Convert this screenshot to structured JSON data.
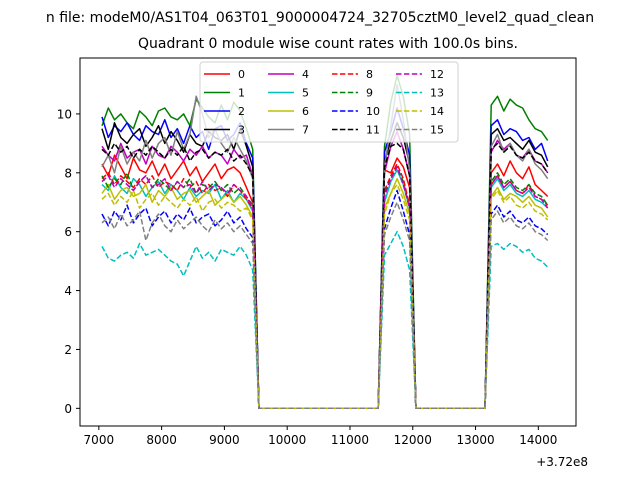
{
  "chart_data": {
    "type": "line",
    "suptitle": "n file: modeM0/AS1T04_063T01_9000004724_32705cztM0_level2_quad_clean",
    "title": "Quadrant 0 module wise count rates with 100.0s bins.",
    "xlabel": "",
    "ylabel": "",
    "x_offset_label": "+3.72e8",
    "xlim": [
      6700,
      14600
    ],
    "ylim": [
      -0.6,
      11.9
    ],
    "xticks": [
      7000,
      8000,
      9000,
      10000,
      11000,
      12000,
      13000,
      14000
    ],
    "yticks": [
      0,
      2,
      4,
      6,
      8,
      10
    ],
    "grid": false,
    "legend": {
      "position": "top-center",
      "ncol": 4
    },
    "x_segments": [
      {
        "start": 7050,
        "end": 9450,
        "step": 100
      },
      {
        "start": 11550,
        "end": 11950,
        "step": 100
      },
      {
        "start": 13250,
        "end": 14150,
        "step": 100
      }
    ],
    "series": [
      {
        "name": "0",
        "color": "#ff0000",
        "dash": "solid",
        "seg": [
          [
            8.3,
            7.9,
            8.6,
            8.2,
            7.8,
            8.5,
            8.1,
            8.0,
            8.4,
            7.9,
            8.3,
            7.8,
            8.1,
            8.4,
            7.9,
            8.2,
            7.7,
            8.0,
            8.3,
            7.8,
            8.1,
            8.2,
            8.0,
            7.5,
            7.0
          ],
          [
            8.1,
            8.0,
            8.5,
            8.2,
            7.5
          ],
          [
            8.0,
            8.3,
            7.9,
            8.4,
            8.0,
            7.8,
            8.2,
            7.6,
            7.4,
            7.2
          ]
        ]
      },
      {
        "name": "1",
        "color": "#008000",
        "dash": "solid",
        "seg": [
          [
            9.6,
            10.2,
            9.8,
            10.0,
            9.7,
            9.5,
            10.1,
            9.9,
            9.6,
            10.1,
            10.2,
            9.9,
            9.8,
            10.0,
            9.6,
            10.5,
            10.2,
            9.9,
            9.7,
            10.3,
            9.8,
            10.4,
            10.1,
            9.5,
            8.8
          ],
          [
            8.9,
            10.4,
            11.3,
            10.6,
            9.3
          ],
          [
            10.3,
            10.6,
            10.1,
            10.5,
            10.3,
            10.2,
            9.8,
            9.5,
            9.4,
            9.1
          ]
        ]
      },
      {
        "name": "2",
        "color": "#0000ff",
        "dash": "solid",
        "seg": [
          [
            9.9,
            9.2,
            9.6,
            9.4,
            9.7,
            9.3,
            9.1,
            9.6,
            9.4,
            9.3,
            9.8,
            9.2,
            9.5,
            9.0,
            9.6,
            9.2,
            9.4,
            8.8,
            9.5,
            9.6,
            9.1,
            9.3,
            9.7,
            9.0,
            8.5
          ],
          [
            8.7,
            9.4,
            10.2,
            9.5,
            8.6
          ],
          [
            9.6,
            9.8,
            9.3,
            9.5,
            9.4,
            9.1,
            9.2,
            8.8,
            9.0,
            8.4
          ]
        ]
      },
      {
        "name": "3",
        "color": "#000000",
        "dash": "solid",
        "seg": [
          [
            9.5,
            8.8,
            9.7,
            9.2,
            9.0,
            9.3,
            9.5,
            8.9,
            9.2,
            9.6,
            9.0,
            9.4,
            9.1,
            8.7,
            9.3,
            9.0,
            8.9,
            9.4,
            9.2,
            9.1,
            9.3,
            8.8,
            9.5,
            8.9,
            8.2
          ],
          [
            8.4,
            9.1,
            9.7,
            9.2,
            8.3
          ],
          [
            9.3,
            9.5,
            9.1,
            9.2,
            9.0,
            8.8,
            9.1,
            8.7,
            8.6,
            8.2
          ]
        ]
      },
      {
        "name": "4",
        "color": "#bf00bf",
        "dash": "solid",
        "seg": [
          [
            8.9,
            8.6,
            8.4,
            9.0,
            8.5,
            8.7,
            8.8,
            8.3,
            8.9,
            8.6,
            8.5,
            8.9,
            8.7,
            8.4,
            8.8,
            8.6,
            8.9,
            8.5,
            8.7,
            8.6,
            8.3,
            8.8,
            8.5,
            8.6,
            7.9
          ],
          [
            8.0,
            8.9,
            9.4,
            8.8,
            7.9
          ],
          [
            8.7,
            9.1,
            8.8,
            9.0,
            8.6,
            8.5,
            8.8,
            8.4,
            8.3,
            8.0
          ]
        ]
      },
      {
        "name": "5",
        "color": "#00bfbf",
        "dash": "solid",
        "seg": [
          [
            7.6,
            7.4,
            7.9,
            7.5,
            7.3,
            7.8,
            7.6,
            7.2,
            7.5,
            7.7,
            7.3,
            7.6,
            7.4,
            7.1,
            7.5,
            7.2,
            7.4,
            7.3,
            7.6,
            7.1,
            7.4,
            7.0,
            7.3,
            7.1,
            6.7
          ],
          [
            7.0,
            7.7,
            8.1,
            7.6,
            6.8
          ],
          [
            7.5,
            7.8,
            7.4,
            7.6,
            7.3,
            7.2,
            7.4,
            7.1,
            7.0,
            6.8
          ]
        ]
      },
      {
        "name": "6",
        "color": "#bfbf00",
        "dash": "solid",
        "seg": [
          [
            7.3,
            7.6,
            7.1,
            7.4,
            7.5,
            7.2,
            7.3,
            7.6,
            7.0,
            7.4,
            7.2,
            7.5,
            7.1,
            7.3,
            7.4,
            7.0,
            7.2,
            7.4,
            6.9,
            7.1,
            7.3,
            7.0,
            7.2,
            6.9,
            6.5
          ],
          [
            6.8,
            7.3,
            7.8,
            7.3,
            6.6
          ],
          [
            7.2,
            7.5,
            7.1,
            7.3,
            7.2,
            7.0,
            7.2,
            6.9,
            6.8,
            6.5
          ]
        ]
      },
      {
        "name": "7",
        "color": "#808080",
        "dash": "solid",
        "seg": [
          [
            8.2,
            8.6,
            8.0,
            8.9,
            8.3,
            8.7,
            8.4,
            9.1,
            8.5,
            9.0,
            9.2,
            8.6,
            9.4,
            8.8,
            9.3,
            10.6,
            10.0,
            9.2,
            9.5,
            9.0,
            8.7,
            9.2,
            8.8,
            8.4,
            7.8
          ],
          [
            8.2,
            9.6,
            11.0,
            9.8,
            8.1
          ],
          [
            8.9,
            9.3,
            8.7,
            9.0,
            8.6,
            8.4,
            8.8,
            8.3,
            8.1,
            7.8
          ]
        ]
      },
      {
        "name": "8",
        "color": "#ff0000",
        "dash": "dashed",
        "seg": [
          [
            7.8,
            8.0,
            7.6,
            7.9,
            7.7,
            7.5,
            7.8,
            7.6,
            7.9,
            7.5,
            7.7,
            7.6,
            7.4,
            7.8,
            7.5,
            7.7,
            7.3,
            7.6,
            7.4,
            7.5,
            7.2,
            7.6,
            7.4,
            7.1,
            6.8
          ],
          [
            7.4,
            7.9,
            8.3,
            7.8,
            6.9
          ],
          [
            7.6,
            7.9,
            7.5,
            7.7,
            7.4,
            7.3,
            7.6,
            7.2,
            7.1,
            6.9
          ]
        ]
      },
      {
        "name": "9",
        "color": "#008000",
        "dash": "dashed",
        "seg": [
          [
            7.9,
            7.5,
            7.8,
            7.6,
            8.0,
            7.4,
            7.7,
            7.9,
            7.5,
            7.8,
            7.6,
            7.4,
            7.7,
            7.5,
            7.8,
            7.3,
            7.6,
            7.5,
            7.7,
            7.4,
            7.6,
            7.3,
            7.5,
            7.2,
            6.9
          ],
          [
            7.3,
            7.8,
            8.2,
            7.7,
            6.8
          ],
          [
            7.7,
            8.0,
            7.6,
            7.8,
            7.5,
            7.4,
            7.6,
            7.3,
            7.2,
            6.9
          ]
        ]
      },
      {
        "name": "10",
        "color": "#0000ff",
        "dash": "dashed",
        "seg": [
          [
            6.6,
            6.2,
            6.7,
            6.4,
            6.9,
            6.3,
            6.6,
            6.8,
            6.2,
            6.5,
            6.7,
            6.3,
            6.6,
            6.4,
            6.8,
            6.3,
            6.5,
            6.6,
            6.2,
            6.4,
            6.7,
            6.3,
            6.5,
            6.1,
            5.8
          ],
          [
            6.1,
            6.8,
            7.4,
            6.7,
            5.9
          ],
          [
            6.6,
            6.9,
            6.5,
            6.7,
            6.4,
            6.3,
            6.5,
            6.2,
            6.1,
            5.9
          ]
        ]
      },
      {
        "name": "11",
        "color": "#000000",
        "dash": "dashed",
        "seg": [
          [
            8.8,
            8.6,
            9.0,
            8.7,
            8.9,
            8.5,
            8.8,
            8.6,
            8.9,
            8.7,
            8.5,
            8.8,
            8.6,
            8.9,
            8.4,
            8.7,
            8.8,
            8.5,
            8.7,
            8.6,
            8.8,
            8.4,
            8.6,
            8.3,
            7.9
          ],
          [
            8.2,
            8.9,
            9.0,
            8.8,
            7.9
          ],
          [
            8.8,
            9.0,
            8.7,
            8.9,
            8.6,
            8.5,
            8.7,
            8.4,
            8.3,
            8.0
          ]
        ]
      },
      {
        "name": "12",
        "color": "#bf00bf",
        "dash": "dashed",
        "seg": [
          [
            7.7,
            7.9,
            7.5,
            7.8,
            7.6,
            7.4,
            7.7,
            7.9,
            7.5,
            7.6,
            7.8,
            7.4,
            7.7,
            7.5,
            7.6,
            7.3,
            7.7,
            7.4,
            7.6,
            7.5,
            7.3,
            7.6,
            7.4,
            7.2,
            6.8
          ],
          [
            7.2,
            7.8,
            8.2,
            7.6,
            6.8
          ],
          [
            7.6,
            7.9,
            7.5,
            7.7,
            7.4,
            7.3,
            7.5,
            7.2,
            7.1,
            6.8
          ]
        ]
      },
      {
        "name": "13",
        "color": "#00bfbf",
        "dash": "dashed",
        "seg": [
          [
            5.5,
            5.1,
            5.0,
            5.2,
            5.3,
            5.1,
            5.6,
            5.2,
            5.3,
            5.4,
            5.2,
            5.0,
            4.9,
            4.5,
            5.0,
            5.5,
            5.1,
            5.3,
            5.0,
            5.4,
            5.3,
            5.2,
            5.5,
            5.2,
            4.7
          ],
          [
            5.2,
            5.6,
            6.0,
            5.5,
            4.7
          ],
          [
            5.5,
            5.6,
            5.4,
            5.6,
            5.5,
            5.3,
            5.4,
            5.1,
            5.0,
            4.8
          ]
        ]
      },
      {
        "name": "14",
        "color": "#bfbf00",
        "dash": "dashed",
        "seg": [
          [
            7.1,
            7.3,
            6.9,
            7.2,
            7.0,
            7.4,
            6.8,
            7.1,
            7.3,
            6.9,
            7.2,
            7.0,
            6.8,
            7.1,
            6.9,
            7.2,
            6.7,
            7.0,
            7.1,
            6.8,
            7.0,
            6.9,
            6.7,
            6.8,
            6.4
          ],
          [
            6.6,
            7.3,
            7.6,
            7.1,
            6.4
          ],
          [
            7.1,
            7.4,
            7.0,
            7.2,
            6.9,
            6.8,
            7.0,
            6.7,
            6.6,
            6.4
          ]
        ]
      },
      {
        "name": "15",
        "color": "#808080",
        "dash": "dashed",
        "seg": [
          [
            6.3,
            6.5,
            6.1,
            6.6,
            6.2,
            6.4,
            6.7,
            5.7,
            6.3,
            6.6,
            6.2,
            6.0,
            6.4,
            6.1,
            6.3,
            6.5,
            6.2,
            6.0,
            6.4,
            6.1,
            6.3,
            6.0,
            6.2,
            5.9,
            5.6
          ],
          [
            5.9,
            6.5,
            7.0,
            6.4,
            5.7
          ],
          [
            6.4,
            6.7,
            6.3,
            6.5,
            6.2,
            6.1,
            6.3,
            6.0,
            5.9,
            5.7
          ]
        ]
      }
    ]
  }
}
